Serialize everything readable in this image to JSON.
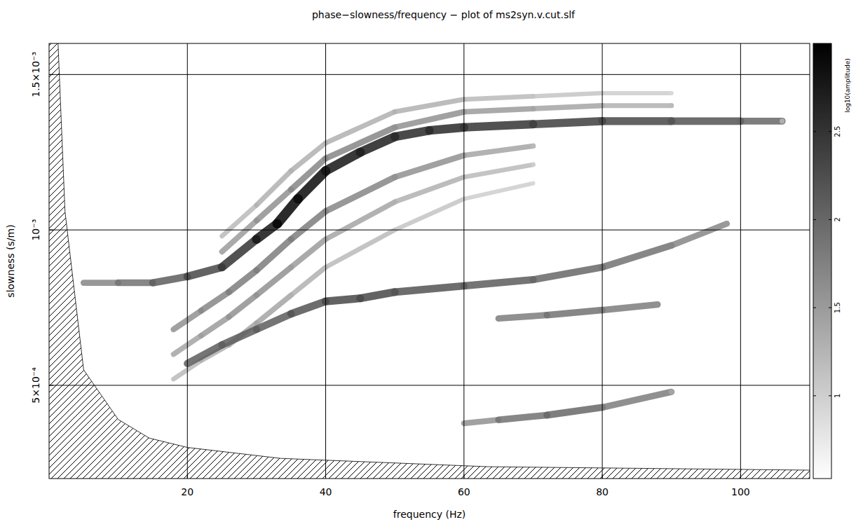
{
  "chart_data": {
    "type": "dispersion",
    "title": "phase−slowness/frequency − plot of ms2syn.v.cut.slf",
    "x_label": "frequency (Hz)",
    "y_label": "slowness (s/m)",
    "xlim": [
      0,
      110
    ],
    "xticks": [
      20,
      40,
      60,
      80,
      100
    ],
    "ylim": [
      0.0002,
      0.0016
    ],
    "yticks": [
      {
        "value": 0.0005,
        "label": "5×10⁻⁴"
      },
      {
        "value": 0.001,
        "label": "10⁻³"
      },
      {
        "value": 0.0015,
        "label": "1.5×10⁻³"
      }
    ],
    "grid": true,
    "colorbar": {
      "label": "log10(amplitude)",
      "range": [
        0.53,
        3.0
      ],
      "ticks": [
        1,
        1.5,
        2,
        2.5
      ]
    },
    "cutoff": {
      "x": [
        1.3,
        2.3,
        5,
        10,
        14.5,
        20,
        33.5,
        63.5,
        110
      ],
      "values": [
        0.0016,
        0.00106,
        0.00055,
        0.00039,
        0.00033,
        0.0003,
        0.000265,
        0.000238,
        0.000227
      ]
    },
    "series": [
      {
        "x": [
          25,
          30,
          35,
          40,
          50,
          60,
          70,
          80,
          90
        ],
        "values": [
          0.00098,
          0.00108,
          0.00119,
          0.00128,
          0.00138,
          0.00142,
          0.00143,
          0.00144,
          0.00144
        ],
        "amplitude": [
          1.2,
          1.3,
          1.3,
          1.3,
          1.3,
          1.2,
          1.1,
          1.0,
          0.9
        ]
      },
      {
        "x": [
          25,
          30,
          35,
          40,
          50,
          60,
          70,
          80,
          90
        ],
        "values": [
          0.00093,
          0.00103,
          0.00113,
          0.00123,
          0.00133,
          0.00138,
          0.00139,
          0.0014,
          0.0014
        ],
        "amplitude": [
          1.5,
          1.6,
          1.7,
          1.7,
          1.6,
          1.5,
          1.4,
          1.3,
          1.2
        ]
      },
      {
        "x": [
          18,
          22,
          26,
          30,
          35,
          40,
          50,
          60,
          70
        ],
        "values": [
          0.00068,
          0.00074,
          0.0008,
          0.00087,
          0.00097,
          0.00106,
          0.00117,
          0.00124,
          0.00127
        ],
        "amplitude": [
          1.6,
          1.7,
          1.8,
          1.8,
          1.8,
          1.7,
          1.6,
          1.4,
          1.2
        ]
      },
      {
        "x": [
          18,
          22,
          26,
          30,
          35,
          40,
          50,
          60,
          70
        ],
        "values": [
          0.0006,
          0.00066,
          0.00072,
          0.00079,
          0.00088,
          0.00097,
          0.00109,
          0.00117,
          0.00121
        ],
        "amplitude": [
          1.4,
          1.5,
          1.6,
          1.6,
          1.5,
          1.4,
          1.3,
          1.2,
          1.0
        ]
      },
      {
        "x": [
          18,
          22,
          26,
          30,
          35,
          40,
          50,
          60,
          70
        ],
        "values": [
          0.00052,
          0.00058,
          0.00063,
          0.0007,
          0.00079,
          0.00088,
          0.001,
          0.0011,
          0.00115
        ],
        "amplitude": [
          1.2,
          1.3,
          1.4,
          1.4,
          1.3,
          1.2,
          1.1,
          1.0,
          0.9
        ]
      },
      {
        "x": [
          5,
          10,
          15,
          20,
          25,
          30,
          33,
          36,
          40,
          45,
          50,
          55,
          60,
          70,
          80,
          90,
          100,
          106
        ],
        "values": [
          0.00083,
          0.00083,
          0.00083,
          0.00085,
          0.00088,
          0.00097,
          0.00102,
          0.0011,
          0.00119,
          0.00125,
          0.0013,
          0.00132,
          0.00133,
          0.00134,
          0.00135,
          0.00135,
          0.00135,
          0.00135
        ],
        "amplitude": [
          1.7,
          1.9,
          2.1,
          2.3,
          2.5,
          2.8,
          2.95,
          2.9,
          2.8,
          2.7,
          2.6,
          2.6,
          2.5,
          2.4,
          2.3,
          2.2,
          2.0,
          1.3
        ]
      },
      {
        "x": [
          20,
          25,
          30,
          35,
          40,
          45,
          50,
          60,
          70,
          80,
          90,
          98
        ],
        "values": [
          0.00057,
          0.00063,
          0.00068,
          0.00073,
          0.00077,
          0.00078,
          0.0008,
          0.00082,
          0.00084,
          0.00088,
          0.00095,
          0.00102
        ],
        "amplitude": [
          2.1,
          2.1,
          2.1,
          2.2,
          2.3,
          2.3,
          2.2,
          2.1,
          2.0,
          1.9,
          1.7,
          1.5
        ]
      },
      {
        "x": [
          65,
          72,
          80,
          88
        ],
        "values": [
          0.000715,
          0.000726,
          0.000742,
          0.00076
        ],
        "amplitude": [
          1.8,
          1.9,
          1.8,
          1.6
        ]
      },
      {
        "x": [
          60,
          65,
          72,
          80,
          90
        ],
        "values": [
          0.000378,
          0.000389,
          0.000404,
          0.000429,
          0.000479
        ],
        "amplitude": [
          1.6,
          1.9,
          2.0,
          1.8,
          1.4
        ]
      }
    ]
  }
}
